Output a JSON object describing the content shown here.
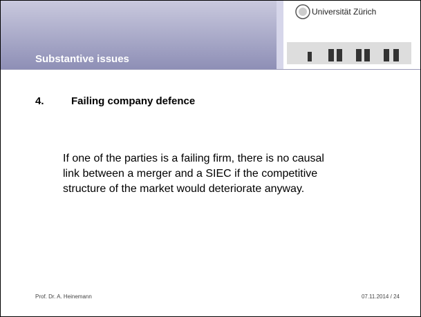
{
  "header": {
    "section": "Substantive issues",
    "university": "Universität Zürich"
  },
  "heading": {
    "number": "4.",
    "title": "Failing company defence"
  },
  "body": "If one of the parties is a failing firm, there is no causal link between a merger and a SIEC if the competitive structure of the market would deteriorate anyway.",
  "footer": {
    "author": "Prof. Dr. A. Heinemann",
    "date": "07.11.2014",
    "separator": "/",
    "page": "24"
  }
}
